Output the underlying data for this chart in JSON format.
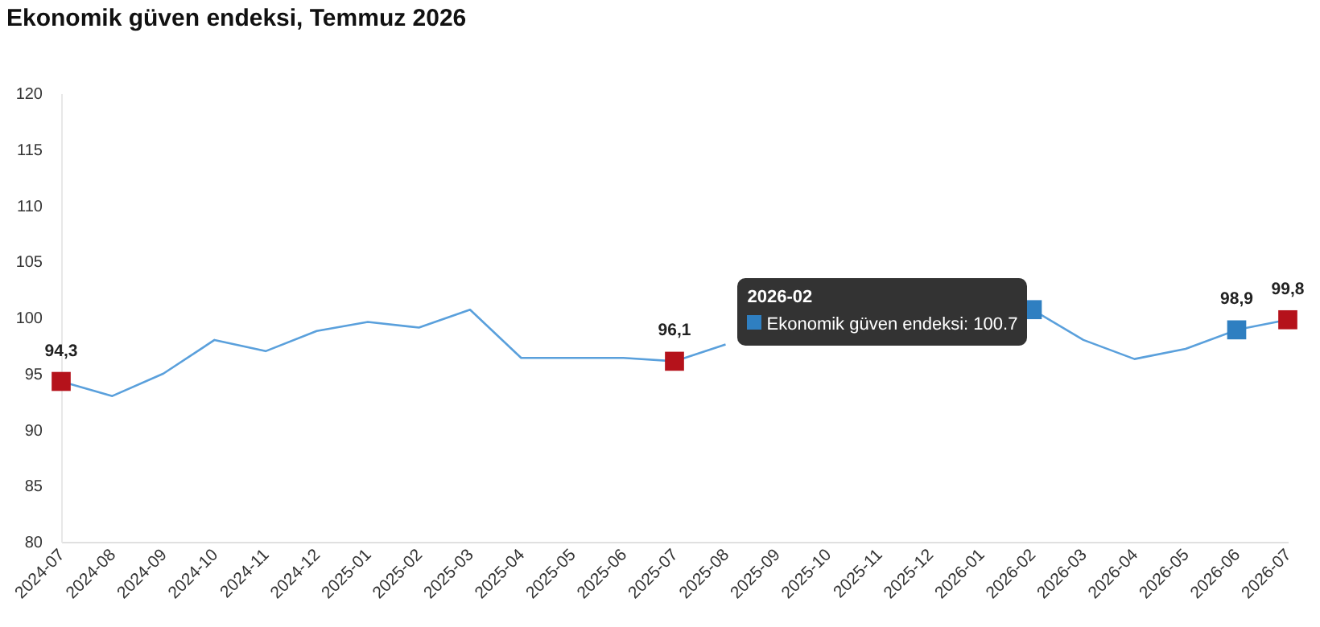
{
  "chart_data": {
    "type": "line",
    "title": "Ekonomik güven endeksi, Temmuz 2026",
    "categories": [
      "2024-07",
      "2024-08",
      "2024-09",
      "2024-10",
      "2024-11",
      "2024-12",
      "2025-01",
      "2025-02",
      "2025-03",
      "2025-04",
      "2025-05",
      "2025-06",
      "2025-07",
      "2025-08",
      "2025-09",
      "2025-10",
      "2025-11",
      "2025-12",
      "2026-01",
      "2026-02",
      "2026-03",
      "2026-04",
      "2026-05",
      "2026-06",
      "2026-07"
    ],
    "series": [
      {
        "color": "#5aa0dc",
        "values": [
          94.3,
          93.0,
          95.0,
          98.0,
          97.0,
          98.8,
          99.6,
          99.1,
          100.7,
          96.4,
          96.4,
          96.4,
          96.1,
          97.6,
          null,
          null,
          null,
          null,
          null,
          100.7,
          98.0,
          96.3,
          97.2,
          98.9,
          99.8
        ],
        "colors": [
          "#b5121b",
          null,
          null,
          null,
          null,
          null,
          null,
          null,
          null,
          null,
          null,
          null,
          "#b5121b",
          null,
          null,
          null,
          null,
          null,
          null,
          "#2f7fc1",
          null,
          null,
          null,
          "#2f7fc1",
          "#b5121b"
        ],
        "value_labels": [
          "94,3",
          null,
          null,
          null,
          null,
          null,
          null,
          null,
          null,
          null,
          null,
          null,
          "96,1",
          null,
          null,
          null,
          null,
          null,
          null,
          null,
          null,
          null,
          null,
          "98,9",
          "99,8"
        ]
      }
    ],
    "annotations": [
      "2026-02",
      "Ekonomik güven endeksi: 100.7"
    ],
    "ylim": [
      80,
      120
    ],
    "yticks": [
      80,
      85,
      90,
      95,
      100,
      105,
      110,
      115,
      120
    ],
    "grid": false
  }
}
